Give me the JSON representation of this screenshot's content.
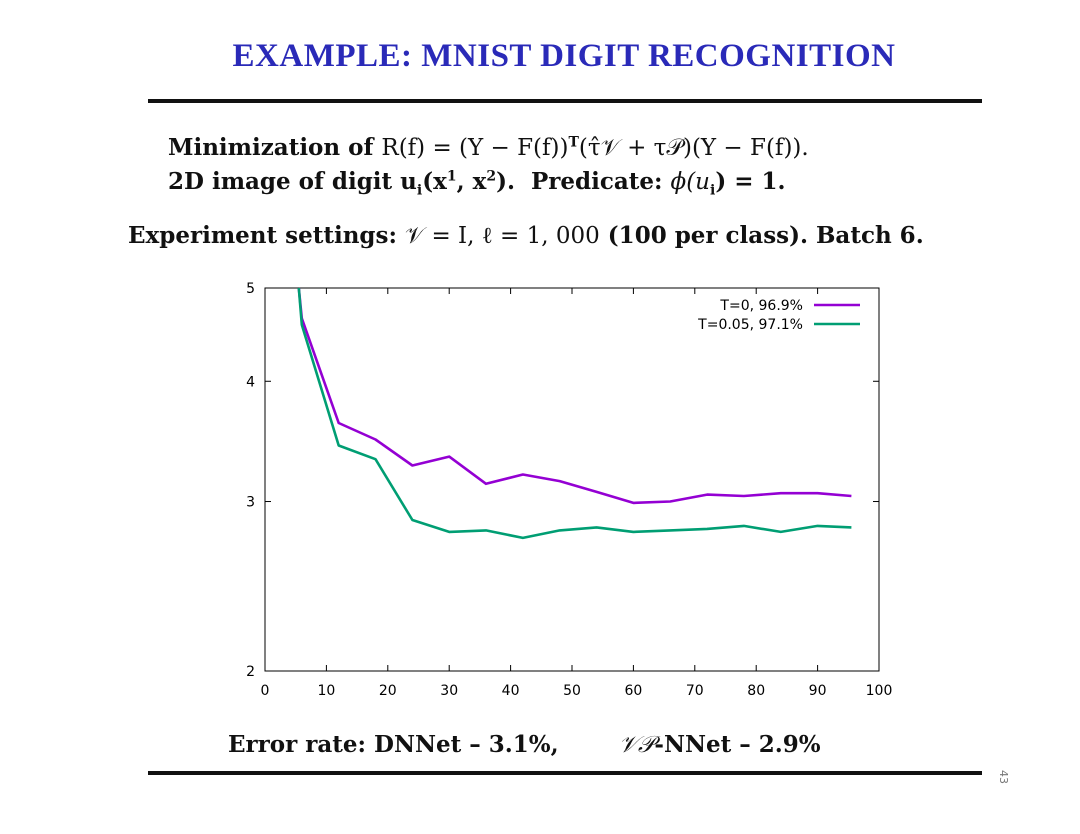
{
  "slide": {
    "title": "EXAMPLE: MNIST DIGIT RECOGNITION",
    "line1": {
      "prefix": "Minimization of ",
      "formula": "R(f) = (Y − F(f))",
      "sup": "T",
      "formula_rest": "(τ̂𝒱 + τ𝒫)(Y − F(f))."
    },
    "line2": {
      "prefix": "2D image of digit ",
      "u": "u",
      "u_sub": "i",
      "args": "(x",
      "sup1": "1",
      "mid": ", x",
      "sup2": "2",
      "close": ").",
      "pred_label": "  Predicate: ",
      "pred": "ϕ(u",
      "pred_sub": "i",
      "pred_rest": ") = 1."
    },
    "line3": {
      "prefix": "Experiment settings: ",
      "v": "𝒱 = I, ℓ = 1, 000",
      "rest": " (100 per class).  Batch 6."
    },
    "line4": {
      "text1": "Error rate:  DNNet – 3.1%,",
      "vp": "𝒱𝒫",
      "text2": "-NNet – 2.9%"
    },
    "page_number": "43"
  },
  "chart_data": {
    "type": "line",
    "title": "",
    "xlabel": "",
    "ylabel": "",
    "xlim": [
      0,
      100
    ],
    "ylim": [
      2,
      5
    ],
    "yscale": "log",
    "grid": false,
    "legend_position": "top-right",
    "xticks": [
      0,
      10,
      20,
      30,
      40,
      50,
      60,
      70,
      80,
      90,
      100
    ],
    "yticks": [
      2,
      3,
      4,
      5
    ],
    "series": [
      {
        "name": "T=0, 96.9%",
        "color": "#9400d3",
        "x": [
          5.5,
          6,
          12,
          18,
          24,
          30,
          36,
          42,
          48,
          54,
          60,
          66,
          72,
          78,
          84,
          90,
          95.5
        ],
        "y": [
          5.0,
          4.65,
          3.62,
          3.48,
          3.27,
          3.34,
          3.13,
          3.2,
          3.15,
          3.07,
          2.99,
          3.0,
          3.05,
          3.04,
          3.06,
          3.06,
          3.04
        ]
      },
      {
        "name": "T=0.05, 97.1%",
        "color": "#009e73",
        "x": [
          5.5,
          6,
          12,
          18,
          24,
          30,
          36,
          42,
          48,
          54,
          60,
          66,
          72,
          78,
          84,
          90,
          95.5
        ],
        "y": [
          5.0,
          4.58,
          3.43,
          3.32,
          2.87,
          2.79,
          2.8,
          2.75,
          2.8,
          2.82,
          2.79,
          2.8,
          2.81,
          2.83,
          2.79,
          2.83,
          2.82
        ]
      }
    ]
  }
}
